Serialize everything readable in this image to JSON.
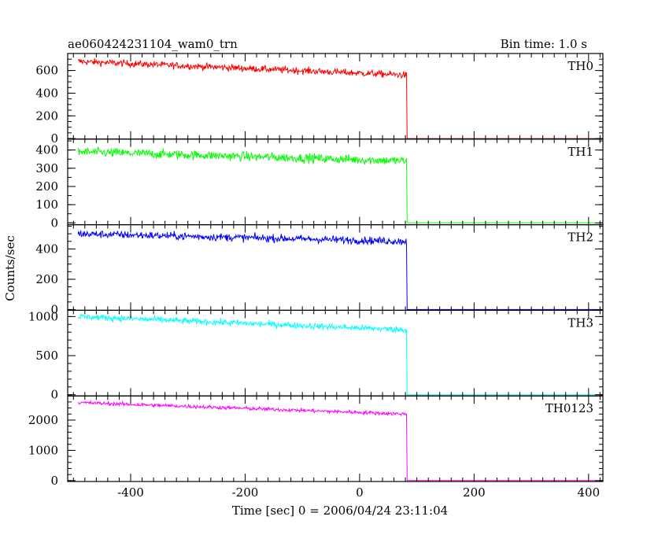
{
  "chart_data": {
    "type": "line",
    "title": "ae060424231104_wam0_trn",
    "bin_time_label": "Bin time: 1.0 s",
    "xlabel": "Time [sec] 0 = 2006/04/24 23:11:04",
    "ylabel": "Counts/sec",
    "xlim": [
      -510,
      425
    ],
    "x_ticks": [
      -400,
      -200,
      0,
      200,
      400
    ],
    "grid": false,
    "step_time": 82,
    "panels": [
      {
        "name": "TH0",
        "color": "#ff0000",
        "ylim": [
          -5,
          750
        ],
        "y_ticks": [
          0,
          200,
          400,
          600
        ],
        "start_level": 680,
        "end_level": 560,
        "noise": 30,
        "after_level": 0
      },
      {
        "name": "TH1",
        "color": "#00ff00",
        "ylim": [
          -10,
          460
        ],
        "y_ticks": [
          0,
          100,
          200,
          300,
          400
        ],
        "start_level": 390,
        "end_level": 340,
        "noise": 25,
        "after_level": 0
      },
      {
        "name": "TH2",
        "color": "#0000ff",
        "ylim": [
          -5,
          560
        ],
        "y_ticks": [
          0,
          200,
          400
        ],
        "start_level": 500,
        "end_level": 450,
        "noise": 25,
        "after_level": 0
      },
      {
        "name": "TH3",
        "color": "#00ffff",
        "ylim": [
          -15,
          1080
        ],
        "y_ticks": [
          0,
          500,
          1000
        ],
        "start_level": 1000,
        "end_level": 830,
        "noise": 40,
        "after_level": 0
      },
      {
        "name": "TH0123",
        "color": "#ff00ff",
        "ylim": [
          -30,
          2800
        ],
        "y_ticks": [
          0,
          1000,
          2000
        ],
        "start_level": 2580,
        "end_level": 2200,
        "noise": 60,
        "after_level": 0
      }
    ]
  }
}
